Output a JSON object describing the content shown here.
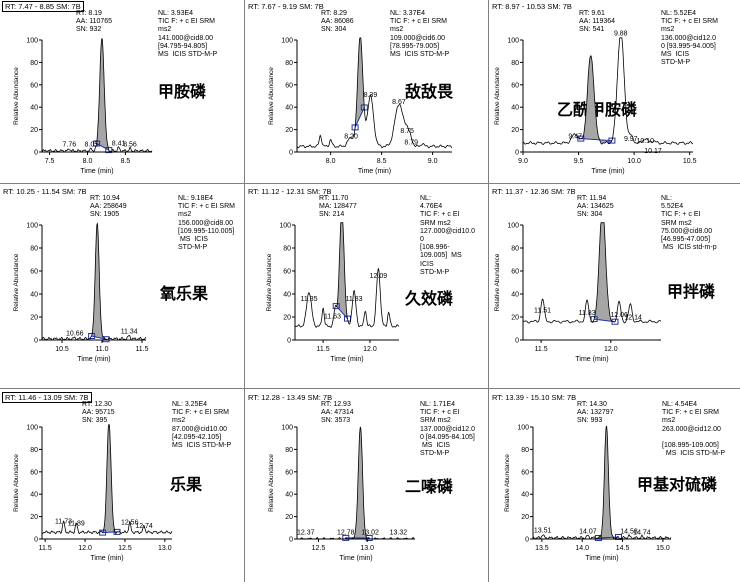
{
  "chart_data": [
    {
      "type": "line",
      "header": "RT: 7.47 - 8.85  SM: 7B",
      "rt_range": "7.47 - 8.85",
      "smoothing": "7B",
      "peak_info": [
        "RT: 8.19",
        "AA: 110765",
        "SN: 932"
      ],
      "nl_info": [
        "NL: 3.93E4",
        "TIC F: + c EI SRM",
        "ms2",
        "141.000@cid8.00",
        "[94.795-94.805]",
        "MS  ICIS STD-M-P"
      ],
      "compound": "甲胺磷",
      "xlabel": "Time (min)",
      "ylabel": "Relative Abundance",
      "xlim": [
        7.4,
        8.85
      ],
      "ylim": [
        0,
        100
      ],
      "xticks": [
        "7.5",
        "8.0",
        "8.5"
      ],
      "xtick_values": [
        7.5,
        8.0,
        8.5
      ],
      "yticks": [
        "0",
        "20",
        "40",
        "60",
        "80",
        "100"
      ],
      "peaks": [
        {
          "x": 8.19,
          "y": 100,
          "w": 0.03,
          "filled": true,
          "start": 8.12,
          "end": 8.28
        }
      ],
      "minor_peaks": [
        {
          "x": 7.76,
          "y": 2
        },
        {
          "x": 8.05,
          "y": 2
        },
        {
          "x": 8.41,
          "y": 3
        },
        {
          "x": 8.56,
          "y": 2
        }
      ],
      "labels": [
        {
          "text": "7.76",
          "x": 7.76,
          "y": 4
        },
        {
          "text": "8.05",
          "x": 8.05,
          "y": 4
        },
        {
          "text": "8.41",
          "x": 8.41,
          "y": 5
        },
        {
          "text": "8.56",
          "x": 8.56,
          "y": 4
        }
      ],
      "baseline": 1
    },
    {
      "type": "line",
      "header": "RT: 7.67 - 9.19  SM: 7B",
      "rt_range": "7.67 - 9.19",
      "smoothing": "7B",
      "peak_info": [
        "RT: 8.29",
        "AA: 86086",
        "SN: 304"
      ],
      "nl_info": [
        "NL: 3.37E4",
        "TIC F: + c EI SRM",
        "ms2",
        "109.000@cid6.00",
        "[78.995-79.005]",
        "MS  ICIS STD-M-P"
      ],
      "compound": "敌敌畏",
      "xlabel": "Time (min)",
      "ylabel": "Relative Abundance",
      "xlim": [
        7.67,
        9.19
      ],
      "ylim": [
        0,
        100
      ],
      "xticks": [
        "8.0",
        "8.5",
        "9.0"
      ],
      "xtick_values": [
        8.0,
        8.5,
        9.0
      ],
      "yticks": [
        "0",
        "20",
        "40",
        "60",
        "80",
        "100"
      ],
      "peaks": [
        {
          "x": 8.29,
          "y": 100,
          "w": 0.025,
          "filled": true,
          "start": 8.24,
          "end": 8.33
        },
        {
          "x": 8.39,
          "y": 45,
          "w": 0.03
        },
        {
          "x": 8.67,
          "y": 38,
          "w": 0.04
        },
        {
          "x": 8.75,
          "y": 13,
          "w": 0.025
        },
        {
          "x": 8.2,
          "y": 8,
          "w": 0.03
        },
        {
          "x": 8.79,
          "y": 4,
          "w": 0.02
        }
      ],
      "minor_peaks": [
        {
          "x": 7.9,
          "y": 10
        },
        {
          "x": 8.0,
          "y": 6
        },
        {
          "x": 8.9,
          "y": 3
        }
      ],
      "labels": [
        {
          "text": "8.39",
          "x": 8.39,
          "y": 48
        },
        {
          "text": "8.67",
          "x": 8.67,
          "y": 42
        },
        {
          "text": "8.75",
          "x": 8.75,
          "y": 16
        },
        {
          "text": "8.20",
          "x": 8.2,
          "y": 11
        },
        {
          "text": "8.79",
          "x": 8.79,
          "y": 6
        }
      ],
      "baseline": 5
    },
    {
      "type": "line",
      "header": "RT: 8.97 - 10.53  SM: 7B",
      "rt_range": "8.97 - 10.53",
      "smoothing": "7B",
      "peak_info": [
        "RT: 9.61",
        "AA: 119364",
        "SN: 541"
      ],
      "nl_info": [
        "NL: 5.52E4",
        "TIC F: + c EI SRM",
        "ms2",
        "136.000@cid12.0",
        "0 [93.995-94.005]",
        "MS  ICIS",
        "STD-M-P"
      ],
      "compound": "乙酰甲胺磷",
      "xlabel": "Time (min)",
      "ylabel": "Relative Abundance",
      "xlim": [
        9.0,
        10.53
      ],
      "ylim": [
        0,
        100
      ],
      "xticks": [
        "9.0",
        "9.5",
        "10.0",
        "10.5"
      ],
      "xtick_values": [
        9.0,
        9.5,
        10.0,
        10.5
      ],
      "yticks": [
        "0",
        "20",
        "40",
        "60",
        "80",
        "100"
      ],
      "peaks": [
        {
          "x": 9.61,
          "y": 78,
          "w": 0.03,
          "filled": true,
          "start": 9.52,
          "end": 9.8
        },
        {
          "x": 9.88,
          "y": 100,
          "w": 0.03
        },
        {
          "x": 9.47,
          "y": 8,
          "w": 0.03
        },
        {
          "x": 9.97,
          "y": 6,
          "w": 0.02
        },
        {
          "x": 10.1,
          "y": 4,
          "w": 0.02
        },
        {
          "x": 10.17,
          "y": 2,
          "w": 0.02
        }
      ],
      "minor_peaks": [],
      "labels": [
        {
          "text": "9.88",
          "x": 9.88,
          "y": 103
        },
        {
          "text": "9.47",
          "x": 9.47,
          "y": 11
        },
        {
          "text": "9.97",
          "x": 9.97,
          "y": 9
        },
        {
          "text": "10.10",
          "x": 10.1,
          "y": 7
        },
        {
          "text": "10.17",
          "x": 10.17,
          "y": -2
        }
      ],
      "baseline": 8
    },
    {
      "type": "line",
      "header": "RT: 10.25 - 11.54  SM: 7B",
      "rt_range": "10.25 - 11.54",
      "smoothing": "7B",
      "peak_info": [
        "RT: 10.94",
        "AA: 258649",
        "SN: 1905"
      ],
      "nl_info": [
        "NL: 9.18E4",
        "TIC F: + c EI SRM",
        "ms2",
        "156.000@cid8.00",
        "[109.995-110.005]",
        " MS  ICIS",
        "STD-M-P"
      ],
      "compound": "氧乐果",
      "xlabel": "Time (min)",
      "ylabel": "Relative Abundance",
      "xlim": [
        10.25,
        11.55
      ],
      "ylim": [
        0,
        100
      ],
      "xticks": [
        "10.5",
        "11.0",
        "11.5"
      ],
      "xtick_values": [
        10.5,
        11.0,
        11.5
      ],
      "yticks": [
        "0",
        "20",
        "40",
        "60",
        "80",
        "100"
      ],
      "peaks": [
        {
          "x": 10.94,
          "y": 100,
          "w": 0.025,
          "filled": true,
          "start": 10.87,
          "end": 11.05
        }
      ],
      "minor_peaks": [
        {
          "x": 10.66,
          "y": 1
        },
        {
          "x": 11.34,
          "y": 3
        }
      ],
      "labels": [
        {
          "text": "10.66",
          "x": 10.66,
          "y": 3
        },
        {
          "text": "11.34",
          "x": 11.34,
          "y": 5
        }
      ],
      "baseline": 1
    },
    {
      "type": "line",
      "header": "RT: 11.12 - 12.31  SM: 7B",
      "rt_range": "11.12 - 12.31",
      "smoothing": "7B",
      "peak_info": [
        "RT: 11.70",
        "MA: 128477",
        "SN: 214"
      ],
      "nl_info": [
        "NL:",
        "4.76E4",
        "TIC F: + c EI",
        "SRM ms2",
        "127.000@cid10.0",
        "0",
        "[108.996-",
        "109.005]  MS",
        "ICIS",
        "STD-M-P"
      ],
      "compound": "久效磷",
      "xlabel": "Time (min)",
      "ylabel": "Relative Abundance",
      "xlim": [
        11.2,
        12.31
      ],
      "ylim": [
        0,
        100
      ],
      "xticks": [
        "11.5",
        "12.0"
      ],
      "xtick_values": [
        11.5,
        12.0
      ],
      "yticks": [
        "0",
        "20",
        "40",
        "60",
        "80",
        "100"
      ],
      "peaks": [
        {
          "x": 11.7,
          "y": 100,
          "w": 0.025,
          "filled": true,
          "start": 11.64,
          "end": 11.76
        },
        {
          "x": 11.35,
          "y": 30,
          "w": 0.025
        },
        {
          "x": 11.83,
          "y": 30,
          "w": 0.02
        },
        {
          "x": 11.63,
          "y": 15,
          "w": 0.015
        },
        {
          "x": 12.09,
          "y": 50,
          "w": 0.02
        }
      ],
      "minor_peaks": [
        {
          "x": 11.5,
          "y": 16
        },
        {
          "x": 11.95,
          "y": 14
        },
        {
          "x": 12.2,
          "y": 12
        }
      ],
      "labels": [
        {
          "text": "11.35",
          "x": 11.35,
          "y": 33
        },
        {
          "text": "11.83",
          "x": 11.83,
          "y": 33
        },
        {
          "text": "11.63",
          "x": 11.6,
          "y": 18
        },
        {
          "text": "12.09",
          "x": 12.09,
          "y": 53
        }
      ],
      "baseline": 12
    },
    {
      "type": "line",
      "header": "RT: 11.37 - 12.36  SM: 7B",
      "rt_range": "11.37 - 12.36",
      "smoothing": "7B",
      "peak_info": [
        "RT: 11.94",
        "AA: 134625",
        "SN: 304"
      ],
      "nl_info": [
        "NL:",
        "5.52E4",
        "TIC F: + c EI",
        "SRM ms2",
        "75.000@cid8.00",
        "[46.995-47.005]",
        " MS  ICIS std-m-p"
      ],
      "compound": "甲拌磷",
      "xlabel": "Time (min)",
      "ylabel": "Relative Abundance",
      "xlim": [
        11.37,
        12.36
      ],
      "ylim": [
        0,
        100
      ],
      "xticks": [
        "11.5",
        "12.0"
      ],
      "xtick_values": [
        11.5,
        12.0
      ],
      "yticks": [
        "0",
        "20",
        "40",
        "60",
        "80",
        "100"
      ],
      "peaks": [
        {
          "x": 11.94,
          "y": 100,
          "w": 0.022,
          "filled": true,
          "start": 11.88,
          "end": 12.03
        }
      ],
      "minor_peaks": [
        {
          "x": 11.51,
          "y": 20
        },
        {
          "x": 11.83,
          "y": 18
        },
        {
          "x": 12.06,
          "y": 17
        },
        {
          "x": 12.14,
          "y": 15
        }
      ],
      "labels": [
        {
          "text": "11.51",
          "x": 11.51,
          "y": 23
        },
        {
          "text": "11.83",
          "x": 11.83,
          "y": 21
        },
        {
          "text": "12.06",
          "x": 12.06,
          "y": 19
        },
        {
          "text": "12.14",
          "x": 12.16,
          "y": 17
        }
      ],
      "baseline": 16
    },
    {
      "type": "line",
      "header": "RT: 11.46 - 13.09  SM: 7B",
      "rt_range": "11.46 - 13.09",
      "smoothing": "7B",
      "peak_info": [
        "RT: 12.30",
        "AA: 95715",
        "SN: 395"
      ],
      "nl_info": [
        "NL: 3.25E4",
        "TIC F: + c EI SRM",
        "ms2",
        "87.000@cid10.00",
        "[42.095-42.105]",
        "MS  ICIS STD-M-P"
      ],
      "compound": "乐果",
      "xlabel": "Time (min)",
      "ylabel": "Relative Abundance",
      "xlim": [
        11.46,
        13.09
      ],
      "ylim": [
        0,
        100
      ],
      "xticks": [
        "11.5",
        "12.0",
        "12.5",
        "13.0"
      ],
      "xtick_values": [
        11.5,
        12.0,
        12.5,
        13.0
      ],
      "yticks": [
        "0",
        "20",
        "40",
        "60",
        "80",
        "100"
      ],
      "peaks": [
        {
          "x": 12.3,
          "y": 100,
          "w": 0.025,
          "filled": true,
          "start": 12.22,
          "end": 12.4
        }
      ],
      "minor_peaks": [
        {
          "x": 11.73,
          "y": 10
        },
        {
          "x": 11.89,
          "y": 8
        },
        {
          "x": 12.56,
          "y": 9
        },
        {
          "x": 12.74,
          "y": 6
        }
      ],
      "labels": [
        {
          "text": "11.73",
          "x": 11.73,
          "y": 13
        },
        {
          "text": "11.89",
          "x": 11.89,
          "y": 11
        },
        {
          "text": "12.56",
          "x": 12.56,
          "y": 12
        },
        {
          "text": "12.74",
          "x": 12.74,
          "y": 9
        }
      ],
      "baseline": 6
    },
    {
      "type": "line",
      "header": "RT: 12.28 - 13.49  SM: 7B",
      "rt_range": "12.28 - 13.49",
      "smoothing": "7B",
      "peak_info": [
        "RT: 12.93",
        "AA: 47314",
        "SN: 3573"
      ],
      "nl_info": [
        "NL: 1.71E4",
        "TIC F: + c EI",
        "SRM ms2",
        "137.000@cid12.0",
        "0 [84.095-84.105]",
        " MS  ICIS",
        "STD-M-P"
      ],
      "compound": "二嗪磷",
      "xlabel": "Time (min)",
      "ylabel": "Relative Abundance",
      "xlim": [
        12.28,
        13.49
      ],
      "ylim": [
        0,
        100
      ],
      "xticks": [
        "12.5",
        "13.0"
      ],
      "xtick_values": [
        12.5,
        13.0
      ],
      "yticks": [
        "0",
        "20",
        "40",
        "60",
        "80",
        "100"
      ],
      "peaks": [
        {
          "x": 12.93,
          "y": 100,
          "w": 0.022,
          "filled": true,
          "start": 12.78,
          "end": 13.02
        }
      ],
      "minor_peaks": [],
      "labels": [
        {
          "text": "12.37",
          "x": 12.37,
          "y": 3
        },
        {
          "text": "12.78",
          "x": 12.78,
          "y": 3
        },
        {
          "text": "13.02",
          "x": 13.03,
          "y": 3
        },
        {
          "text": "13.32",
          "x": 13.32,
          "y": 3
        }
      ],
      "baseline": 0
    },
    {
      "type": "line",
      "header": "RT: 13.39 - 15.10  SM: 7B",
      "rt_range": "13.39 - 15.10",
      "smoothing": "7B",
      "peak_info": [
        "RT: 14.30",
        "AA: 132797",
        "SN: 993"
      ],
      "nl_info": [
        "NL: 4.54E4",
        "TIC F: + c EI SRM",
        "ms2",
        "263.000@cid12.00",
        "",
        "[108.995-109.005]",
        "  MS  ICIS STD-M-P"
      ],
      "compound": "甲基对硫磷",
      "xlabel": "Time (min)",
      "ylabel": "Relative Abundance",
      "xlim": [
        13.39,
        15.1
      ],
      "ylim": [
        0,
        100
      ],
      "xticks": [
        "13.5",
        "14.0",
        "14.5",
        "15.0"
      ],
      "xtick_values": [
        13.5,
        14.0,
        14.5,
        15.0
      ],
      "yticks": [
        "0",
        "20",
        "40",
        "60",
        "80",
        "100"
      ],
      "peaks": [
        {
          "x": 14.3,
          "y": 100,
          "w": 0.025,
          "filled": true,
          "start": 14.2,
          "end": 14.45
        }
      ],
      "minor_peaks": [
        {
          "x": 13.51,
          "y": 3
        },
        {
          "x": 14.07,
          "y": 2
        },
        {
          "x": 14.58,
          "y": 2
        },
        {
          "x": 14.74,
          "y": 1
        }
      ],
      "labels": [
        {
          "text": "13.51",
          "x": 13.51,
          "y": 5
        },
        {
          "text": "14.07",
          "x": 14.07,
          "y": 4
        },
        {
          "text": "14.58",
          "x": 14.58,
          "y": 4
        },
        {
          "text": "14.74",
          "x": 14.74,
          "y": 3
        }
      ],
      "baseline": 1
    }
  ],
  "colors": {
    "axis": "#000000",
    "trace": "#000000",
    "peak_fill": "#a6a6a6",
    "marker": "#2233aa",
    "header_rt": "#1f2fa0",
    "grid_line": "#7f7f7f"
  }
}
